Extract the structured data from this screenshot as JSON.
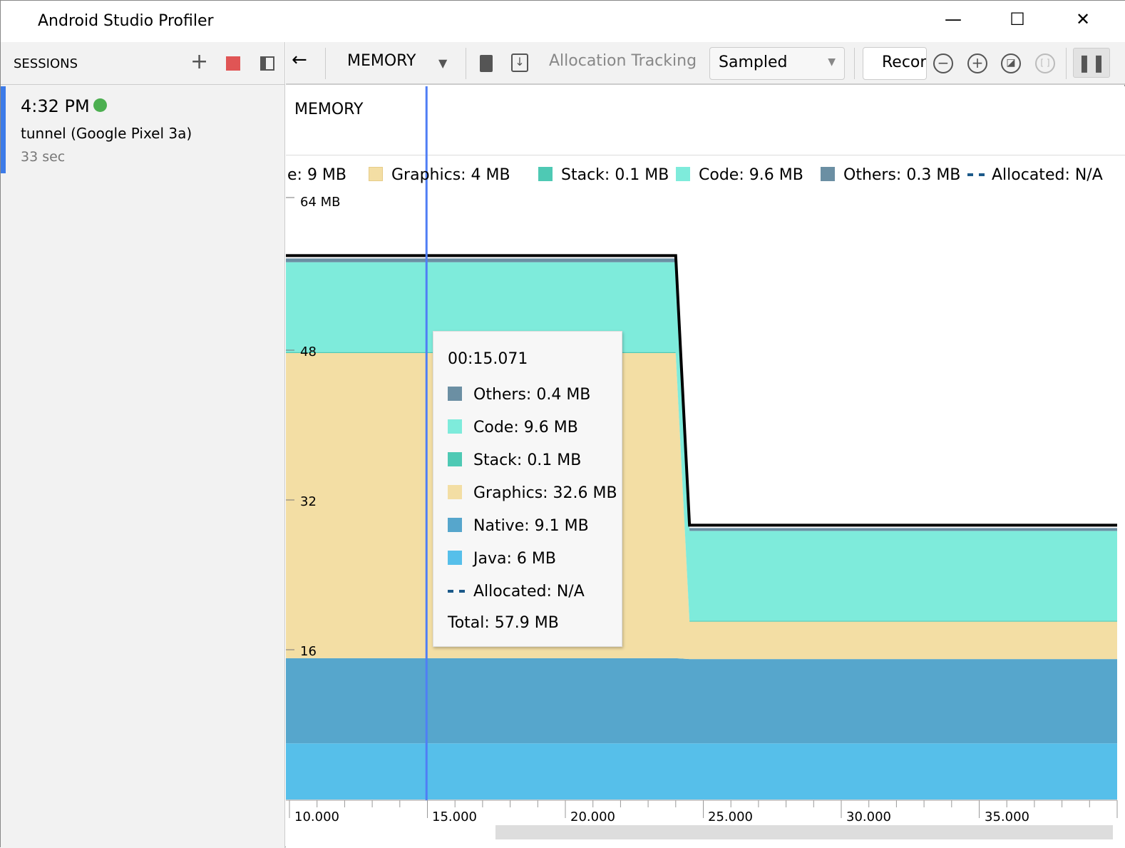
{
  "window": {
    "title": "Android Studio Profiler",
    "minimize": "—",
    "maximize": "☐",
    "close": "✕"
  },
  "sessions": {
    "label": "SESSIONS",
    "add": "+",
    "items": [
      {
        "time": "4:32 PM",
        "name": "tunnel (Google Pixel 3a)",
        "duration": "33 sec",
        "status_color": "#4caf50"
      }
    ]
  },
  "toolbar": {
    "back": "←",
    "profiler": "MEMORY",
    "allocation_tracking": "Allocation Tracking",
    "sampling": "Sampled",
    "record": "Record"
  },
  "legend": {
    "overlap_a": "e: 9 MB",
    "overlap_b": "MEMORY",
    "items": [
      {
        "label": "Graphics: 4 MB",
        "color": "#f3dea4"
      },
      {
        "label": "Stack: 0.1 MB",
        "color": "#4ec9b4"
      },
      {
        "label": "Code: 9.6 MB",
        "color": "#7eebdb"
      },
      {
        "label": "Others: 0.3 MB",
        "color": "#6b8fa3"
      },
      {
        "label": "Allocated: N/A",
        "color": "#1c5a8a"
      }
    ]
  },
  "tooltip": {
    "time": "00:15.071",
    "rows": [
      {
        "label": "Others: 0.4 MB",
        "color": "#6b8fa3"
      },
      {
        "label": "Code: 9.6 MB",
        "color": "#7eebdb"
      },
      {
        "label": "Stack: 0.1 MB",
        "color": "#4ec9b4"
      },
      {
        "label": "Graphics: 32.6 MB",
        "color": "#f3dea4"
      },
      {
        "label": "Native: 9.1 MB",
        "color": "#56a6cc"
      },
      {
        "label": "Java: 6 MB",
        "color": "#56bfea"
      },
      {
        "label": "Allocated: N/A",
        "color": "#1c5a8a"
      }
    ],
    "total": "Total: 57.9 MB"
  },
  "chart_data": {
    "type": "area",
    "stacked": true,
    "x": [
      10,
      24.0,
      24.5,
      40
    ],
    "xlim": [
      10,
      40
    ],
    "ylim": [
      0,
      64
    ],
    "yticks": [
      "64 MB",
      "48",
      "32",
      "16"
    ],
    "xticks": [
      "10.000",
      "15.000",
      "20.000",
      "25.000",
      "30.000",
      "35.000"
    ],
    "cursor": 15.071,
    "series": [
      {
        "name": "Java",
        "color": "#56bfea",
        "values": [
          6,
          6,
          6,
          6
        ]
      },
      {
        "name": "Native",
        "color": "#56a6cc",
        "values": [
          9.1,
          9.1,
          9.0,
          9.0
        ]
      },
      {
        "name": "Graphics",
        "color": "#f3dea4",
        "values": [
          32.6,
          32.6,
          4,
          4
        ]
      },
      {
        "name": "Stack",
        "color": "#4ec9b4",
        "values": [
          0.1,
          0.1,
          0.1,
          0.1
        ]
      },
      {
        "name": "Code",
        "color": "#7eebdb",
        "values": [
          9.6,
          9.6,
          9.6,
          9.6
        ]
      },
      {
        "name": "Others",
        "color": "#6b8fa3",
        "values": [
          0.4,
          0.4,
          0.3,
          0.3
        ]
      }
    ]
  }
}
